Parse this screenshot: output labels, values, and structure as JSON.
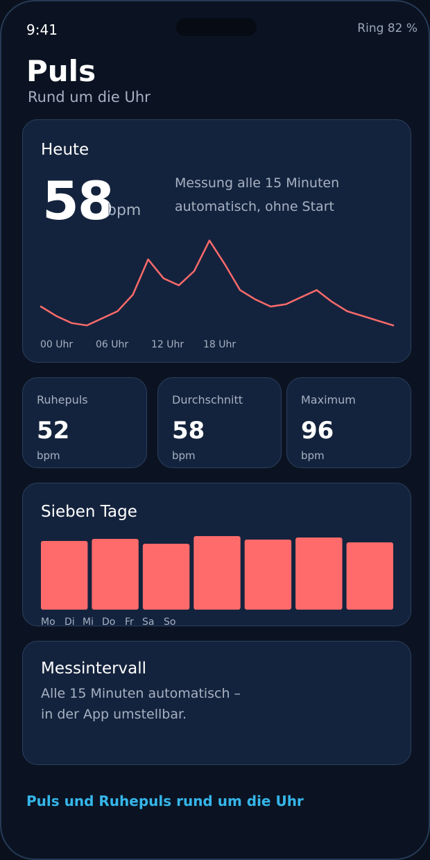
{
  "status_bar": {
    "time": "9:41",
    "battery": "Ring 82 %"
  },
  "header": {
    "title": "Puls",
    "subtitle": "Rund um die Uhr"
  },
  "today": {
    "heading": "Heute",
    "value": "58",
    "unit": "bpm",
    "description": "Messung alle 15 Minuten automatisch, ohne Start"
  },
  "chart_data": [
    {
      "type": "line",
      "x_tick_labels": [
        "00 Uhr",
        "06 Uhr",
        "12 Uhr",
        "18 Uhr"
      ],
      "values": [
        50,
        46,
        43,
        42,
        45,
        48,
        55,
        70,
        62,
        59,
        65,
        78,
        68,
        57,
        53,
        50,
        51,
        54,
        57,
        52,
        48,
        46,
        44,
        42
      ],
      "color": "#ff6b6b",
      "ylim": [
        35,
        85
      ]
    },
    {
      "type": "bar",
      "title": "Sieben Tage",
      "categories": [
        "Mo",
        "Di",
        "Mi",
        "Do",
        "Fr",
        "Sa",
        "So"
      ],
      "values": [
        99,
        102,
        95,
        106,
        101,
        104,
        97
      ],
      "ylim": [
        0,
        106
      ],
      "color": "#ff6b6b"
    }
  ],
  "stats": [
    {
      "label": "Ruhepuls",
      "value": "52",
      "unit": "bpm"
    },
    {
      "label": "Durchschnitt",
      "value": "58",
      "unit": "bpm"
    },
    {
      "label": "Maximum",
      "value": "96",
      "unit": "bpm"
    }
  ],
  "week": {
    "heading": "Sieben Tage"
  },
  "interval": {
    "heading": "Messintervall",
    "line1": "Alle 15 Minuten automatisch –",
    "line2": "in der App umstellbar."
  },
  "footer": {
    "text": "Puls und Ruhepuls rund um die Uhr"
  },
  "colors": {
    "accent": "#ff6b6b",
    "link": "#35b6ea",
    "card": "#14233d",
    "background": "#0b1322"
  }
}
